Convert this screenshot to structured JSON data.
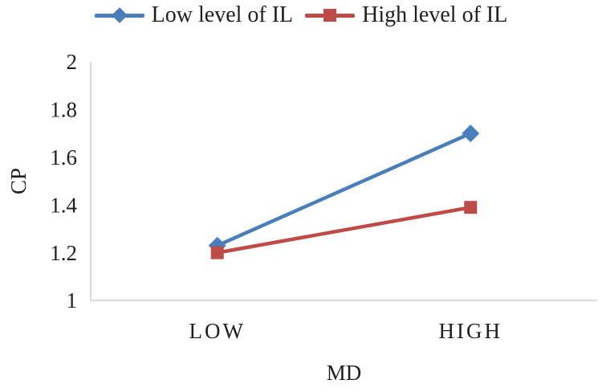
{
  "chart_data": {
    "type": "line",
    "title": "",
    "categories": [
      "LOW",
      "HIGH"
    ],
    "series": [
      {
        "name": "Low level of IL",
        "values": [
          1.23,
          1.7
        ],
        "color": "#4a7ebb",
        "marker": "diamond"
      },
      {
        "name": "High level of IL",
        "values": [
          1.2,
          1.39
        ],
        "color": "#be4b48",
        "marker": "square"
      }
    ],
    "xlabel": "MD",
    "ylabel": "CP",
    "ylim": [
      1,
      2
    ],
    "ytick_step": 0.2,
    "yticks": [
      "1",
      "1.2",
      "1.4",
      "1.6",
      "1.8",
      "2"
    ],
    "legend_position": "top",
    "grid": false,
    "axis_color": "#d9d9d9",
    "text_color": "#1f1f1f",
    "background_color": "#ffffff"
  }
}
